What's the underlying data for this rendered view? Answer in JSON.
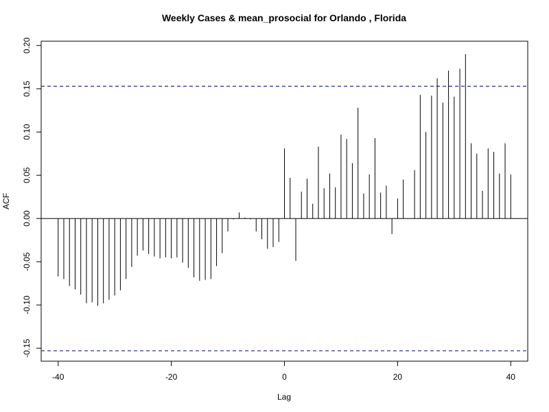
{
  "chart_data": {
    "type": "bar",
    "subtype": "acf-lag-plot",
    "title": "Weekly Cases & mean_prosocial for Orlando , Florida",
    "xlabel": "Lag",
    "ylabel": "ACF",
    "xlim": [
      -43,
      43
    ],
    "ylim": [
      -0.165,
      0.205
    ],
    "x_ticks": [
      -40,
      -20,
      0,
      20,
      40
    ],
    "x_tick_labels": [
      "-40",
      "-20",
      "0",
      "20",
      "40"
    ],
    "y_ticks": [
      -0.15,
      -0.1,
      -0.05,
      0.0,
      0.05,
      0.1,
      0.15,
      0.2
    ],
    "y_tick_labels": [
      "-0.15",
      "-0.10",
      "-0.05",
      "0.00",
      "0.05",
      "0.10",
      "0.15",
      "0.20"
    ],
    "confidence_bound": 0.153,
    "zero_line": true,
    "grid": false,
    "bar_color": "#000000",
    "bound_color": "#00008B",
    "lags": [
      -40,
      -39,
      -38,
      -37,
      -36,
      -35,
      -34,
      -33,
      -32,
      -31,
      -30,
      -29,
      -28,
      -27,
      -26,
      -25,
      -24,
      -23,
      -22,
      -21,
      -20,
      -19,
      -18,
      -17,
      -16,
      -15,
      -14,
      -13,
      -12,
      -11,
      -10,
      -9,
      -8,
      -7,
      -6,
      -5,
      -4,
      -3,
      -2,
      -1,
      0,
      1,
      2,
      3,
      4,
      5,
      6,
      7,
      8,
      9,
      10,
      11,
      12,
      13,
      14,
      15,
      16,
      17,
      18,
      19,
      20,
      21,
      22,
      23,
      24,
      25,
      26,
      27,
      28,
      29,
      30,
      31,
      32,
      33,
      34,
      35,
      36,
      37,
      38,
      39,
      40
    ],
    "values": [
      -0.067,
      -0.07,
      -0.078,
      -0.082,
      -0.088,
      -0.098,
      -0.097,
      -0.101,
      -0.098,
      -0.094,
      -0.089,
      -0.083,
      -0.07,
      -0.056,
      -0.043,
      -0.037,
      -0.041,
      -0.044,
      -0.046,
      -0.045,
      -0.046,
      -0.045,
      -0.051,
      -0.057,
      -0.068,
      -0.072,
      -0.071,
      -0.07,
      -0.055,
      -0.04,
      -0.015,
      -0.001,
      0.007,
      0.001,
      -0.001,
      -0.015,
      -0.024,
      -0.035,
      -0.033,
      -0.027,
      0.081,
      0.047,
      -0.049,
      0.031,
      0.046,
      0.017,
      0.083,
      0.035,
      0.052,
      0.036,
      0.097,
      0.092,
      0.064,
      0.128,
      0.029,
      0.051,
      0.093,
      0.03,
      0.038,
      -0.018,
      0.023,
      0.045,
      0.0,
      0.056,
      0.143,
      0.1,
      0.142,
      0.162,
      0.134,
      0.171,
      0.141,
      0.173,
      0.19,
      0.087,
      0.075,
      0.032,
      0.081,
      0.077,
      0.052,
      0.087,
      0.051
    ]
  }
}
